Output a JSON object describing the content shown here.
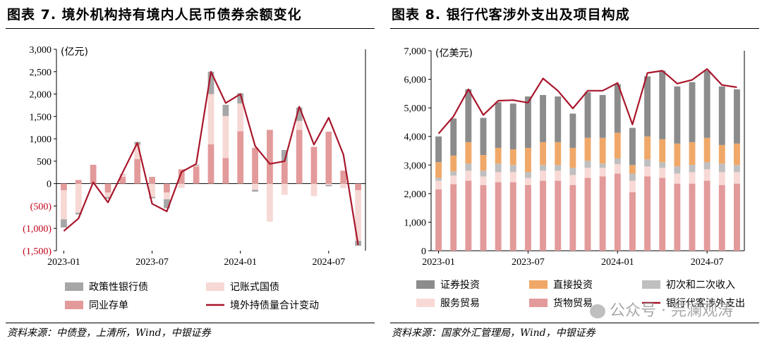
{
  "left": {
    "title": "图表 7. 境外机构持有境内人民币债券余额变化",
    "source": "资料来源：中债登，上清所，Wind，中银证券"
  },
  "right": {
    "title": "图表 8. 银行代客涉外支出及项目构成",
    "source": "资料来源：国家外汇管理局，Wind，中银证券"
  },
  "watermark": "公众号 · 芫澜观涛",
  "chart_data": [
    {
      "type": "bar",
      "stacked": true,
      "unit": "(亿元)",
      "ylim": [
        -1500,
        3000
      ],
      "yticks": [
        -1500,
        -1000,
        -500,
        0,
        500,
        1000,
        1500,
        2000,
        2500,
        3000
      ],
      "ytick_labels": [
        "(1,500)",
        "(1,000)",
        "(500)",
        "0",
        "500",
        "1,000",
        "1,500",
        "2,000",
        "2,500",
        "3,000"
      ],
      "x_tick_labels": [
        {
          "index": 0,
          "label": "2023-01"
        },
        {
          "index": 6,
          "label": "2023-07"
        },
        {
          "index": 12,
          "label": "2024-01"
        },
        {
          "index": 18,
          "label": "2024-07"
        }
      ],
      "categories": [
        "2023-01",
        "2023-02",
        "2023-03",
        "2023-04",
        "2023-05",
        "2023-06",
        "2023-07",
        "2023-08",
        "2023-09",
        "2023-10",
        "2023-11",
        "2023-12",
        "2024-01",
        "2024-02",
        "2024-03",
        "2024-04",
        "2024-05",
        "2024-06",
        "2024-07",
        "2024-08",
        "2024-09"
      ],
      "series": [
        {
          "name": "同业存单",
          "color": "#e39a9a",
          "values": [
            -150,
            80,
            420,
            -200,
            150,
            550,
            150,
            -200,
            320,
            380,
            880,
            570,
            1170,
            800,
            1200,
            500,
            1200,
            820,
            1160,
            290,
            -150
          ]
        },
        {
          "name": "记账式国债",
          "color": "#f6d8d5",
          "values": [
            -650,
            -650,
            0,
            -100,
            50,
            320,
            -300,
            -150,
            -100,
            20,
            1120,
            940,
            620,
            -140,
            -850,
            -250,
            200,
            -280,
            -30,
            -100,
            -1130
          ]
        },
        {
          "name": "政策性银行债",
          "color": "#a6a6a6",
          "values": [
            -180,
            -40,
            0,
            -40,
            10,
            60,
            -30,
            -200,
            0,
            20,
            500,
            250,
            230,
            -40,
            0,
            250,
            300,
            0,
            -30,
            0,
            -110
          ]
        }
      ],
      "line": {
        "name": "境外持债量合计变动",
        "color": "#a8162b",
        "values": [
          -1060,
          -780,
          30,
          -420,
          250,
          910,
          -450,
          -620,
          260,
          440,
          2500,
          1800,
          2000,
          840,
          440,
          500,
          1720,
          870,
          1470,
          650,
          -1370
        ]
      },
      "legend": [
        {
          "name": "政策性银行债",
          "kind": "bar",
          "color": "#a6a6a6"
        },
        {
          "name": "记账式国债",
          "kind": "bar",
          "color": "#f6d8d5"
        },
        {
          "name": "同业存单",
          "kind": "bar",
          "color": "#e39a9a"
        },
        {
          "name": "境外持债量合计变动",
          "kind": "line",
          "color": "#a8162b"
        }
      ]
    },
    {
      "type": "bar",
      "stacked": true,
      "unit": "(亿美元)",
      "ylim": [
        0,
        7000
      ],
      "yticks": [
        0,
        1000,
        2000,
        3000,
        4000,
        5000,
        6000,
        7000
      ],
      "ytick_labels": [
        "0",
        "1,000",
        "2,000",
        "3,000",
        "4,000",
        "5,000",
        "6,000",
        "7,000"
      ],
      "x_tick_labels": [
        {
          "index": 0,
          "label": "2023-01"
        },
        {
          "index": 6,
          "label": "2023-07"
        },
        {
          "index": 12,
          "label": "2024-01"
        },
        {
          "index": 18,
          "label": "2024-07"
        }
      ],
      "categories": [
        "2023-01",
        "2023-02",
        "2023-03",
        "2023-04",
        "2023-05",
        "2023-06",
        "2023-07",
        "2023-08",
        "2023-09",
        "2023-10",
        "2023-11",
        "2023-12",
        "2024-01",
        "2024-02",
        "2024-03",
        "2024-04",
        "2024-05",
        "2024-06",
        "2024-07",
        "2024-08",
        "2024-09"
      ],
      "series": [
        {
          "name": "货物贸易",
          "color": "#e39a9a",
          "values": [
            2150,
            2330,
            2450,
            2300,
            2400,
            2400,
            2300,
            2450,
            2450,
            2300,
            2550,
            2600,
            2700,
            2050,
            2600,
            2550,
            2350,
            2350,
            2450,
            2300,
            2350
          ]
        },
        {
          "name": "服务贸易",
          "color": "#f8d9d6",
          "values": [
            300,
            300,
            350,
            300,
            350,
            350,
            250,
            350,
            350,
            350,
            350,
            300,
            330,
            400,
            350,
            350,
            350,
            400,
            400,
            450,
            400
          ]
        },
        {
          "name": "初次和二次收入",
          "color": "#bfbfbf",
          "values": [
            100,
            150,
            250,
            200,
            300,
            250,
            200,
            200,
            200,
            250,
            250,
            150,
            200,
            250,
            250,
            200,
            250,
            250,
            250,
            300,
            250
          ]
        },
        {
          "name": "直接投资",
          "color": "#f0a868",
          "values": [
            550,
            550,
            750,
            550,
            550,
            550,
            850,
            800,
            800,
            700,
            800,
            900,
            900,
            300,
            800,
            800,
            800,
            800,
            850,
            650,
            750
          ]
        },
        {
          "name": "证券投资",
          "color": "#8c8c8c",
          "values": [
            900,
            1300,
            1850,
            1300,
            1600,
            1600,
            1800,
            1650,
            1600,
            1200,
            1600,
            1500,
            1700,
            1300,
            2100,
            2400,
            2000,
            2100,
            2350,
            2050,
            1900
          ]
        }
      ],
      "line": {
        "name": "银行代客涉外支出",
        "color": "#a8162b",
        "values": [
          4100,
          4700,
          5650,
          4750,
          5250,
          5270,
          5180,
          6030,
          5600,
          4980,
          5600,
          5600,
          5870,
          4420,
          6220,
          6300,
          5850,
          5980,
          6360,
          5800,
          5720
        ]
      },
      "legend": [
        {
          "name": "证券投资",
          "kind": "bar",
          "color": "#8c8c8c"
        },
        {
          "name": "直接投资",
          "kind": "bar",
          "color": "#f0a868"
        },
        {
          "name": "初次和二次收入",
          "kind": "bar",
          "color": "#bfbfbf"
        },
        {
          "name": "服务贸易",
          "kind": "bar",
          "color": "#f8d9d6"
        },
        {
          "name": "货物贸易",
          "kind": "bar",
          "color": "#e39a9a"
        },
        {
          "name": "银行代客涉外支出",
          "kind": "line",
          "color": "#a8162b"
        }
      ]
    }
  ]
}
